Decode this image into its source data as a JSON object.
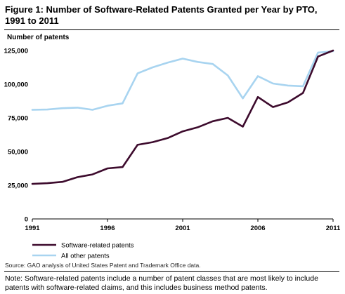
{
  "figure": {
    "title": "Figure 1: Number of Software-Related Patents Granted per Year by PTO, 1991 to 2011",
    "source": "Source: GAO analysis of United States Patent and Trademark Office data.",
    "note": "Note: Software-related patents include a number of patent classes that are most likely to include patents with software-related claims, and this includes business method patents."
  },
  "chart_data": {
    "type": "line",
    "ylabel": "Number of patents",
    "ylim": [
      0,
      125000
    ],
    "yticks": [
      0,
      25000,
      50000,
      75000,
      100000,
      125000
    ],
    "ytick_labels": [
      "0",
      "25,000",
      "50,000",
      "75,000",
      "100,000",
      "125,000"
    ],
    "xlim": [
      1991,
      2011
    ],
    "xticks": [
      1991,
      1996,
      2001,
      2006,
      2011
    ],
    "xtick_labels": [
      "1991",
      "1996",
      "2001",
      "2006",
      "2011"
    ],
    "x": [
      1991,
      1992,
      1993,
      1994,
      1995,
      1996,
      1997,
      1998,
      1999,
      2000,
      2001,
      2002,
      2003,
      2004,
      2005,
      2006,
      2007,
      2008,
      2009,
      2010,
      2011
    ],
    "series": [
      {
        "name": "Software-related patents",
        "color": "#3d0b2d",
        "values": [
          26000,
          26500,
          27500,
          31000,
          33000,
          37500,
          38500,
          55000,
          57000,
          60000,
          65000,
          68000,
          72500,
          75000,
          68500,
          90500,
          83000,
          86500,
          93500,
          120500,
          125000
        ]
      },
      {
        "name": "All other patents",
        "color": "#a8d4f0",
        "values": [
          81000,
          81200,
          82200,
          82600,
          81000,
          84000,
          85800,
          108000,
          112500,
          116000,
          119000,
          116500,
          115000,
          106500,
          89500,
          106000,
          100500,
          99000,
          98500,
          123500,
          124500
        ]
      }
    ],
    "legend_position": "bottom-left",
    "grid": false
  }
}
